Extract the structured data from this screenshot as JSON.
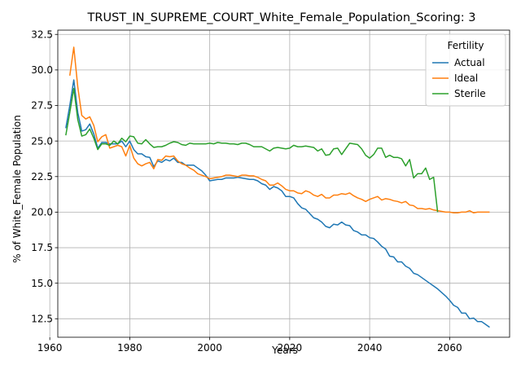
{
  "chart_data": {
    "type": "line",
    "title": "TRUST_IN_SUPREME_COURT_White_Female_Population_Scoring: 3",
    "xlabel": "Years",
    "ylabel": "% of White_Female Population",
    "xlim": [
      1962,
      2075
    ],
    "ylim": [
      11.2,
      32.8
    ],
    "x_ticks": [
      1960,
      1980,
      2000,
      2020,
      2040,
      2060
    ],
    "y_ticks": [
      12.5,
      15.0,
      17.5,
      20.0,
      22.5,
      25.0,
      27.5,
      30.0,
      32.5
    ],
    "x_tick_labels": [
      "1960",
      "1980",
      "2000",
      "2020",
      "2040",
      "2060"
    ],
    "y_tick_labels": [
      "12.5",
      "15.0",
      "17.5",
      "20.0",
      "22.5",
      "25.0",
      "27.5",
      "30.0",
      "32.5"
    ],
    "grid": true,
    "legend": {
      "title": "Fertility",
      "position": "top-right"
    },
    "series": [
      {
        "name": "Actual",
        "color": "#1f77b4",
        "points": [
          [
            1964,
            25.9
          ],
          [
            1965,
            27.5
          ],
          [
            1966,
            29.3
          ],
          [
            1967,
            27.0
          ],
          [
            1968,
            25.7
          ],
          [
            1969,
            25.8
          ],
          [
            1970,
            26.2
          ],
          [
            1971,
            25.5
          ],
          [
            1972,
            24.5
          ],
          [
            1973,
            24.9
          ],
          [
            1974,
            24.9
          ],
          [
            1975,
            24.8
          ],
          [
            1976,
            24.8
          ],
          [
            1977,
            24.8
          ],
          [
            1978,
            25.0
          ],
          [
            1979,
            24.6
          ],
          [
            1980,
            25.0
          ],
          [
            1981,
            24.4
          ],
          [
            1982,
            24.1
          ],
          [
            1983,
            24.1
          ],
          [
            1984,
            23.9
          ],
          [
            1985,
            23.85
          ],
          [
            1986,
            23.2
          ],
          [
            1987,
            23.6
          ],
          [
            1988,
            23.5
          ],
          [
            1989,
            23.7
          ],
          [
            1990,
            23.6
          ],
          [
            1991,
            23.8
          ],
          [
            1992,
            23.5
          ],
          [
            1993,
            23.5
          ],
          [
            1994,
            23.3
          ],
          [
            1995,
            23.3
          ],
          [
            1996,
            23.3
          ],
          [
            1997,
            23.1
          ],
          [
            1998,
            22.9
          ],
          [
            1999,
            22.6
          ],
          [
            2000,
            22.2
          ],
          [
            2001,
            22.25
          ],
          [
            2002,
            22.3
          ],
          [
            2003,
            22.3
          ],
          [
            2004,
            22.4
          ],
          [
            2005,
            22.4
          ],
          [
            2006,
            22.4
          ],
          [
            2007,
            22.45
          ],
          [
            2008,
            22.4
          ],
          [
            2009,
            22.35
          ],
          [
            2010,
            22.3
          ],
          [
            2011,
            22.3
          ],
          [
            2012,
            22.2
          ],
          [
            2013,
            22.0
          ],
          [
            2014,
            21.9
          ],
          [
            2015,
            21.6
          ],
          [
            2016,
            21.8
          ],
          [
            2017,
            21.7
          ],
          [
            2018,
            21.5
          ],
          [
            2019,
            21.1
          ],
          [
            2020,
            21.1
          ],
          [
            2021,
            21.0
          ],
          [
            2022,
            20.6
          ],
          [
            2023,
            20.3
          ],
          [
            2024,
            20.2
          ],
          [
            2025,
            19.9
          ],
          [
            2026,
            19.6
          ],
          [
            2027,
            19.5
          ],
          [
            2028,
            19.3
          ],
          [
            2029,
            19.0
          ],
          [
            2030,
            18.9
          ],
          [
            2031,
            19.15
          ],
          [
            2032,
            19.1
          ],
          [
            2033,
            19.3
          ],
          [
            2034,
            19.1
          ],
          [
            2035,
            19.05
          ],
          [
            2036,
            18.7
          ],
          [
            2037,
            18.6
          ],
          [
            2038,
            18.4
          ],
          [
            2039,
            18.4
          ],
          [
            2040,
            18.2
          ],
          [
            2041,
            18.15
          ],
          [
            2042,
            17.9
          ],
          [
            2043,
            17.6
          ],
          [
            2044,
            17.4
          ],
          [
            2045,
            16.9
          ],
          [
            2046,
            16.85
          ],
          [
            2047,
            16.5
          ],
          [
            2048,
            16.5
          ],
          [
            2049,
            16.2
          ],
          [
            2050,
            16.05
          ],
          [
            2051,
            15.7
          ],
          [
            2052,
            15.6
          ],
          [
            2053,
            15.4
          ],
          [
            2054,
            15.2
          ],
          [
            2055,
            15.0
          ],
          [
            2056,
            14.8
          ],
          [
            2057,
            14.6
          ],
          [
            2058,
            14.35
          ],
          [
            2059,
            14.1
          ],
          [
            2060,
            13.8
          ],
          [
            2061,
            13.45
          ],
          [
            2062,
            13.3
          ],
          [
            2063,
            12.9
          ],
          [
            2064,
            12.9
          ],
          [
            2065,
            12.5
          ],
          [
            2066,
            12.55
          ],
          [
            2067,
            12.3
          ],
          [
            2068,
            12.3
          ],
          [
            2069,
            12.1
          ],
          [
            2070,
            11.9
          ]
        ]
      },
      {
        "name": "Ideal",
        "color": "#ff7f0e",
        "points": [
          [
            1965,
            29.6
          ],
          [
            1966,
            31.6
          ],
          [
            1967,
            28.8
          ],
          [
            1968,
            26.8
          ],
          [
            1969,
            26.55
          ],
          [
            1970,
            26.7
          ],
          [
            1971,
            26.1
          ],
          [
            1972,
            24.95
          ],
          [
            1973,
            25.3
          ],
          [
            1974,
            25.45
          ],
          [
            1975,
            24.5
          ],
          [
            1976,
            24.6
          ],
          [
            1977,
            24.7
          ],
          [
            1978,
            24.6
          ],
          [
            1979,
            23.95
          ],
          [
            1980,
            24.7
          ],
          [
            1981,
            23.8
          ],
          [
            1982,
            23.4
          ],
          [
            1983,
            23.25
          ],
          [
            1984,
            23.4
          ],
          [
            1985,
            23.5
          ],
          [
            1986,
            23.05
          ],
          [
            1987,
            23.7
          ],
          [
            1988,
            23.65
          ],
          [
            1989,
            23.95
          ],
          [
            1990,
            23.9
          ],
          [
            1991,
            23.95
          ],
          [
            1992,
            23.6
          ],
          [
            1993,
            23.4
          ],
          [
            1994,
            23.3
          ],
          [
            1995,
            23.1
          ],
          [
            1996,
            22.95
          ],
          [
            1997,
            22.7
          ],
          [
            1998,
            22.6
          ],
          [
            1999,
            22.5
          ],
          [
            2000,
            22.35
          ],
          [
            2001,
            22.4
          ],
          [
            2002,
            22.45
          ],
          [
            2003,
            22.5
          ],
          [
            2004,
            22.6
          ],
          [
            2005,
            22.6
          ],
          [
            2006,
            22.55
          ],
          [
            2007,
            22.5
          ],
          [
            2008,
            22.6
          ],
          [
            2009,
            22.6
          ],
          [
            2010,
            22.55
          ],
          [
            2011,
            22.55
          ],
          [
            2012,
            22.45
          ],
          [
            2013,
            22.3
          ],
          [
            2014,
            22.2
          ],
          [
            2015,
            21.9
          ],
          [
            2016,
            21.9
          ],
          [
            2017,
            22.05
          ],
          [
            2018,
            21.85
          ],
          [
            2019,
            21.6
          ],
          [
            2020,
            21.5
          ],
          [
            2021,
            21.5
          ],
          [
            2022,
            21.35
          ],
          [
            2023,
            21.3
          ],
          [
            2024,
            21.5
          ],
          [
            2025,
            21.4
          ],
          [
            2026,
            21.2
          ],
          [
            2027,
            21.1
          ],
          [
            2028,
            21.25
          ],
          [
            2029,
            21.0
          ],
          [
            2030,
            21.0
          ],
          [
            2031,
            21.2
          ],
          [
            2032,
            21.2
          ],
          [
            2033,
            21.3
          ],
          [
            2034,
            21.25
          ],
          [
            2035,
            21.35
          ],
          [
            2036,
            21.15
          ],
          [
            2037,
            21.0
          ],
          [
            2038,
            20.9
          ],
          [
            2039,
            20.75
          ],
          [
            2040,
            20.9
          ],
          [
            2041,
            21.0
          ],
          [
            2042,
            21.1
          ],
          [
            2043,
            20.85
          ],
          [
            2044,
            20.95
          ],
          [
            2045,
            20.9
          ],
          [
            2046,
            20.8
          ],
          [
            2047,
            20.75
          ],
          [
            2048,
            20.65
          ],
          [
            2049,
            20.75
          ],
          [
            2050,
            20.5
          ],
          [
            2051,
            20.45
          ],
          [
            2052,
            20.25
          ],
          [
            2053,
            20.25
          ],
          [
            2054,
            20.2
          ],
          [
            2055,
            20.25
          ],
          [
            2056,
            20.15
          ],
          [
            2057,
            20.1
          ],
          [
            2058,
            20.05
          ],
          [
            2059,
            20.0
          ],
          [
            2060,
            20.0
          ],
          [
            2061,
            19.95
          ],
          [
            2062,
            19.95
          ],
          [
            2063,
            20.0
          ],
          [
            2064,
            20.0
          ],
          [
            2065,
            20.1
          ],
          [
            2066,
            19.95
          ],
          [
            2067,
            20.0
          ],
          [
            2068,
            20.0
          ],
          [
            2069,
            20.0
          ],
          [
            2070,
            20.0
          ]
        ]
      },
      {
        "name": "Sterile",
        "color": "#2ca02c",
        "points": [
          [
            1964,
            25.4
          ],
          [
            1965,
            27.0
          ],
          [
            1966,
            28.7
          ],
          [
            1967,
            26.5
          ],
          [
            1968,
            25.35
          ],
          [
            1969,
            25.45
          ],
          [
            1970,
            25.85
          ],
          [
            1971,
            25.2
          ],
          [
            1972,
            24.4
          ],
          [
            1973,
            24.8
          ],
          [
            1974,
            24.8
          ],
          [
            1975,
            24.7
          ],
          [
            1976,
            25.0
          ],
          [
            1977,
            24.8
          ],
          [
            1978,
            25.2
          ],
          [
            1979,
            24.95
          ],
          [
            1980,
            25.35
          ],
          [
            1981,
            25.3
          ],
          [
            1982,
            24.85
          ],
          [
            1983,
            24.8
          ],
          [
            1984,
            25.1
          ],
          [
            1985,
            24.8
          ],
          [
            1986,
            24.55
          ],
          [
            1987,
            24.6
          ],
          [
            1988,
            24.6
          ],
          [
            1989,
            24.7
          ],
          [
            1990,
            24.85
          ],
          [
            1991,
            24.95
          ],
          [
            1992,
            24.9
          ],
          [
            1993,
            24.75
          ],
          [
            1994,
            24.7
          ],
          [
            1995,
            24.85
          ],
          [
            1996,
            24.8
          ],
          [
            1997,
            24.8
          ],
          [
            1998,
            24.8
          ],
          [
            1999,
            24.8
          ],
          [
            2000,
            24.85
          ],
          [
            2001,
            24.8
          ],
          [
            2002,
            24.9
          ],
          [
            2003,
            24.85
          ],
          [
            2004,
            24.85
          ],
          [
            2005,
            24.8
          ],
          [
            2006,
            24.8
          ],
          [
            2007,
            24.75
          ],
          [
            2008,
            24.85
          ],
          [
            2009,
            24.85
          ],
          [
            2010,
            24.75
          ],
          [
            2011,
            24.6
          ],
          [
            2012,
            24.6
          ],
          [
            2013,
            24.6
          ],
          [
            2014,
            24.45
          ],
          [
            2015,
            24.3
          ],
          [
            2016,
            24.5
          ],
          [
            2017,
            24.55
          ],
          [
            2018,
            24.5
          ],
          [
            2019,
            24.45
          ],
          [
            2020,
            24.5
          ],
          [
            2021,
            24.7
          ],
          [
            2022,
            24.6
          ],
          [
            2023,
            24.6
          ],
          [
            2024,
            24.65
          ],
          [
            2025,
            24.6
          ],
          [
            2026,
            24.55
          ],
          [
            2027,
            24.3
          ],
          [
            2028,
            24.45
          ],
          [
            2029,
            24.0
          ],
          [
            2030,
            24.05
          ],
          [
            2031,
            24.45
          ],
          [
            2032,
            24.5
          ],
          [
            2033,
            24.05
          ],
          [
            2034,
            24.45
          ],
          [
            2035,
            24.85
          ],
          [
            2036,
            24.8
          ],
          [
            2037,
            24.75
          ],
          [
            2038,
            24.45
          ],
          [
            2039,
            24.0
          ],
          [
            2040,
            23.8
          ],
          [
            2041,
            24.05
          ],
          [
            2042,
            24.5
          ],
          [
            2043,
            24.5
          ],
          [
            2044,
            23.85
          ],
          [
            2045,
            24.0
          ],
          [
            2046,
            23.85
          ],
          [
            2047,
            23.85
          ],
          [
            2048,
            23.75
          ],
          [
            2049,
            23.25
          ],
          [
            2050,
            23.7
          ],
          [
            2051,
            22.4
          ],
          [
            2052,
            22.7
          ],
          [
            2053,
            22.7
          ],
          [
            2054,
            23.1
          ],
          [
            2055,
            22.3
          ],
          [
            2056,
            22.45
          ],
          [
            2057,
            20.0
          ]
        ]
      }
    ]
  }
}
